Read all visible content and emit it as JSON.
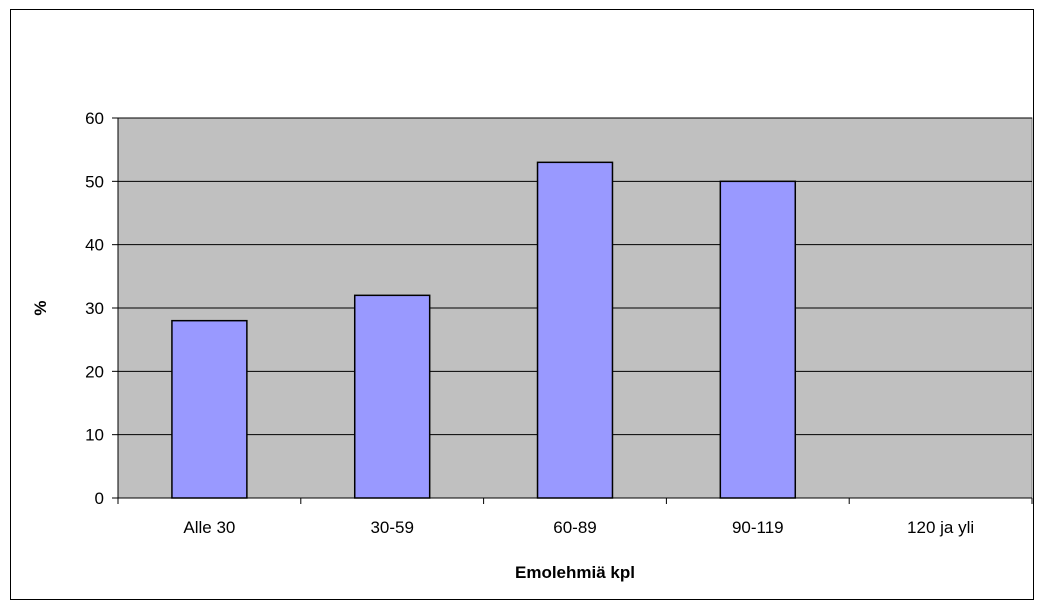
{
  "chart_data": {
    "type": "bar",
    "title": "",
    "xlabel": "Emolehmiä kpl",
    "ylabel": "%",
    "categories": [
      "Alle 30",
      "30-59",
      "60-89",
      "90-119",
      "120 ja yli"
    ],
    "values": [
      28,
      32,
      53,
      50,
      0
    ],
    "ylim": [
      0,
      60
    ],
    "yticks": [
      "0",
      "10",
      "20",
      "30",
      "40",
      "50",
      "60"
    ],
    "grid": true,
    "legend": "none",
    "colors": {
      "bar_fill": "#9999ff",
      "plot_background": "#c0c0c0",
      "gridline": "#000000",
      "axis": "#000000"
    }
  }
}
